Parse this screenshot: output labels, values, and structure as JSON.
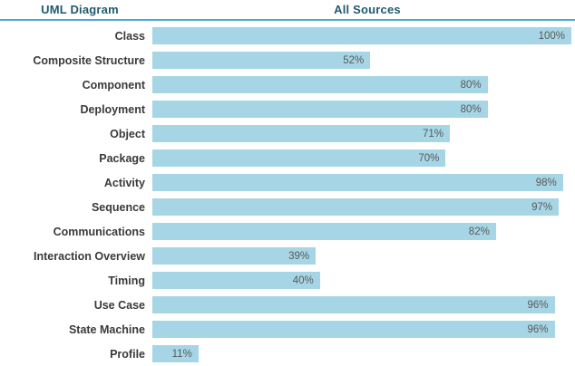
{
  "header": {
    "label_col": "UML Diagram",
    "value_col": "All Sources"
  },
  "colors": {
    "bar_fill": "#A6D6E5",
    "header_text": "#1F5A70",
    "divider": "#4BACC6",
    "value_text": "#595959",
    "category_text": "#3A3A3A"
  },
  "chart_data": {
    "type": "bar",
    "orientation": "horizontal",
    "title": "All Sources",
    "xlabel": "",
    "ylabel": "UML Diagram",
    "categories": [
      "Class",
      "Composite Structure",
      "Component",
      "Deployment",
      "Object",
      "Package",
      "Activity",
      "Sequence",
      "Communications",
      "Interaction Overview",
      "Timing",
      "Use Case",
      "State Machine",
      "Profile"
    ],
    "values": [
      100,
      52,
      80,
      80,
      71,
      70,
      98,
      97,
      82,
      39,
      40,
      96,
      96,
      11
    ],
    "value_suffix": "%",
    "xlim": [
      0,
      100
    ],
    "grid": false,
    "legend": false,
    "value_label_position": "inside-end"
  }
}
